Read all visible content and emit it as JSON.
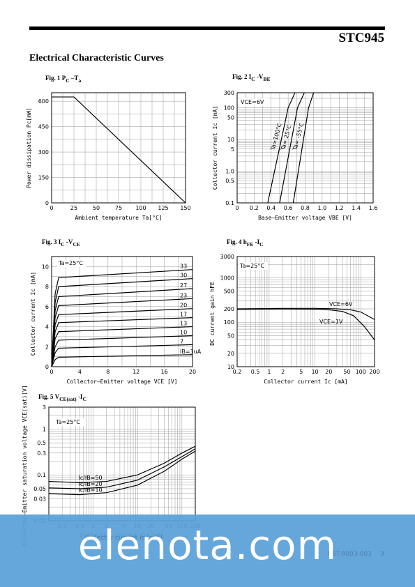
{
  "header": {
    "part_number": "STC945"
  },
  "section_title": "Electrical Characteristic Curves",
  "figures": [
    {
      "id": "fig1",
      "label": "Fig. 1 P",
      "sub1": "C",
      "mid": " –T",
      "sub2": "a"
    },
    {
      "id": "fig2",
      "label": "Fig. 2 I",
      "sub1": "C",
      "mid": " -V",
      "sub2": "BE"
    },
    {
      "id": "fig3",
      "label": "Fig. 3 I",
      "sub1": "C",
      "mid": " -V",
      "sub2": "CE"
    },
    {
      "id": "fig4",
      "label": "Fig. 4 h",
      "sub1": "FE",
      "mid": " -I",
      "sub2": "C"
    },
    {
      "id": "fig5",
      "label": "Fig. 5 V",
      "sub1": "CE(sat)",
      "mid": " -I",
      "sub2": "C"
    }
  ],
  "chart_data": [
    {
      "id": "fig1",
      "type": "line",
      "xlabel": "Ambient temperature Ta[°C]",
      "ylabel": "Power dissipation Pc[mW]",
      "xlim": [
        0,
        150
      ],
      "ylim": [
        0,
        650
      ],
      "grid": true,
      "xticks": [
        0,
        25,
        50,
        75,
        100,
        125,
        150
      ],
      "yticks": [
        0,
        150,
        300,
        450,
        600
      ],
      "series": [
        {
          "x": [
            0,
            25,
            150
          ],
          "y": [
            625,
            625,
            0
          ]
        }
      ]
    },
    {
      "id": "fig2",
      "type": "line",
      "xlabel": "Base–Emitter voltage VBE [V]",
      "ylabel": "Collector current Ic [mA]",
      "xlim": [
        0,
        1.6
      ],
      "ylim": [
        0.1,
        300
      ],
      "yscale": "log",
      "grid": true,
      "xticks": [
        0,
        0.2,
        0.4,
        0.6,
        0.8,
        1.0,
        1.2,
        1.4,
        1.6
      ],
      "xtick_labels": [
        "0",
        "0.2",
        "0.4",
        "0.6",
        "0.8",
        "1.0",
        "1.2",
        "1.4",
        "1.6"
      ],
      "yticks": [
        0.1,
        0.5,
        1.0,
        5,
        10,
        50,
        100,
        300
      ],
      "ytick_labels": [
        "0.1",
        "0.5",
        "1.0",
        "5",
        "10",
        "50",
        "100",
        "300"
      ],
      "annotations": [
        {
          "text": "VCE=6V"
        }
      ],
      "series": [
        {
          "name": "Ta=100°C",
          "x": [
            0.36,
            0.44,
            0.52,
            0.6,
            0.68
          ],
          "y": [
            0.1,
            1,
            10,
            100,
            300
          ]
        },
        {
          "name": "Ta= 25°C",
          "x": [
            0.5,
            0.57,
            0.64,
            0.71,
            0.79
          ],
          "y": [
            0.1,
            1,
            10,
            100,
            300
          ]
        },
        {
          "name": "Ta= -55°C",
          "x": [
            0.66,
            0.72,
            0.78,
            0.84,
            0.9
          ],
          "y": [
            0.1,
            1,
            10,
            100,
            300
          ]
        }
      ]
    },
    {
      "id": "fig3",
      "type": "line",
      "xlabel": "Collector–Emitter voltage VCE [V]",
      "ylabel": "Collector current Ic [mA]",
      "xlim": [
        0,
        20
      ],
      "ylim": [
        0,
        11
      ],
      "grid": true,
      "xticks": [
        0,
        4,
        8,
        12,
        16,
        20
      ],
      "yticks": [
        0,
        2,
        4,
        6,
        8,
        10
      ],
      "annotations": [
        {
          "text": "Ta=25°C"
        }
      ],
      "series": [
        {
          "name": "IB=3uA",
          "x": [
            0,
            0.5,
            1,
            20
          ],
          "y": [
            0,
            0.7,
            0.95,
            1.2
          ]
        },
        {
          "name": "7",
          "x": [
            0,
            0.5,
            1,
            20
          ],
          "y": [
            0,
            1.4,
            1.85,
            2.2
          ]
        },
        {
          "name": "10",
          "x": [
            0,
            0.5,
            1,
            20
          ],
          "y": [
            0,
            2.0,
            2.65,
            3.1
          ]
        },
        {
          "name": "13",
          "x": [
            0,
            0.5,
            1,
            20
          ],
          "y": [
            0,
            2.8,
            3.5,
            4.0
          ]
        },
        {
          "name": "17",
          "x": [
            0,
            0.5,
            1,
            20
          ],
          "y": [
            0,
            3.5,
            4.4,
            4.9
          ]
        },
        {
          "name": "20",
          "x": [
            0,
            0.5,
            1,
            20
          ],
          "y": [
            0,
            4.2,
            5.2,
            5.8
          ]
        },
        {
          "name": "23",
          "x": [
            0,
            0.5,
            1,
            20
          ],
          "y": [
            0,
            4.9,
            6.1,
            6.8
          ]
        },
        {
          "name": "27",
          "x": [
            0,
            0.5,
            1,
            20
          ],
          "y": [
            0,
            5.6,
            7.0,
            7.8
          ]
        },
        {
          "name": "30",
          "x": [
            0,
            0.5,
            1,
            20
          ],
          "y": [
            0,
            6.4,
            8.0,
            8.8
          ]
        },
        {
          "name": "33",
          "x": [
            0,
            0.5,
            1,
            20
          ],
          "y": [
            0,
            7.3,
            8.9,
            9.7
          ]
        }
      ]
    },
    {
      "id": "fig4",
      "type": "line",
      "xlabel": "Collector current Ic [mA]",
      "ylabel": "DC current gain hFE",
      "xlim": [
        0.2,
        200
      ],
      "ylim": [
        10,
        3000
      ],
      "xscale": "log",
      "yscale": "log",
      "grid": true,
      "xticks": [
        0.2,
        0.5,
        1,
        2,
        5,
        10,
        20,
        50,
        100,
        200
      ],
      "xtick_labels": [
        "0.2",
        "0.5",
        "1",
        "2",
        "5",
        "10",
        "20",
        "50",
        "100",
        "200"
      ],
      "yticks": [
        10,
        20,
        50,
        100,
        200,
        500,
        1000,
        3000
      ],
      "ytick_labels": [
        "10",
        "20",
        "50",
        "100",
        "200",
        "500",
        "1000",
        "3000"
      ],
      "annotations": [
        {
          "text": "Ta=25°C"
        }
      ],
      "series": [
        {
          "name": "VCE=6V",
          "x": [
            0.2,
            2,
            10,
            30,
            60,
            100,
            200
          ],
          "y": [
            200,
            205,
            205,
            200,
            190,
            170,
            115
          ]
        },
        {
          "name": "VCE=1V",
          "x": [
            0.2,
            2,
            10,
            20,
            40,
            70,
            120,
            200
          ],
          "y": [
            195,
            198,
            196,
            190,
            175,
            140,
            80,
            40
          ]
        }
      ]
    },
    {
      "id": "fig5",
      "type": "line",
      "xlabel": "Collector current Ic [mA]",
      "ylabel": "Collector–Emitter saturation voltage VCE(sat)[V]",
      "xlim": [
        0.1,
        200
      ],
      "ylim": [
        0.01,
        3
      ],
      "xscale": "log",
      "yscale": "log",
      "grid": true,
      "xticks": [
        0.2,
        0.5,
        1,
        2,
        5,
        10,
        20,
        50,
        100,
        200
      ],
      "xtick_labels": [
        "0.2",
        "0.5",
        "1",
        "2",
        "5",
        "10",
        "20",
        "50",
        "100",
        "200"
      ],
      "yticks": [
        0.01,
        0.03,
        0.05,
        0.1,
        0.3,
        0.5,
        1,
        3
      ],
      "ytick_labels": [
        "0.01",
        "0.03",
        "0.05",
        "0.1",
        "0.3",
        "0.5",
        "1",
        "3"
      ],
      "annotations": [
        {
          "text": "Ta=25°C"
        }
      ],
      "series": [
        {
          "name": "Ic/IB=50",
          "x": [
            0.1,
            0.5,
            2,
            10,
            40,
            100,
            200
          ],
          "y": [
            0.072,
            0.068,
            0.072,
            0.1,
            0.18,
            0.3,
            0.42
          ]
        },
        {
          "name": "Ic/IB=20",
          "x": [
            0.1,
            0.5,
            2,
            10,
            40,
            100,
            200
          ],
          "y": [
            0.052,
            0.05,
            0.054,
            0.077,
            0.15,
            0.25,
            0.37
          ]
        },
        {
          "name": "Ic/IB=10",
          "x": [
            0.1,
            0.5,
            2,
            10,
            40,
            100,
            200
          ],
          "y": [
            0.039,
            0.037,
            0.041,
            0.06,
            0.12,
            0.22,
            0.33
          ]
        }
      ]
    }
  ],
  "watermark": {
    "brand": "elenota.com",
    "faint_left": "Collector current Ic [mA]",
    "faint_right": "KST-9003-003",
    "faint_page": "3"
  }
}
